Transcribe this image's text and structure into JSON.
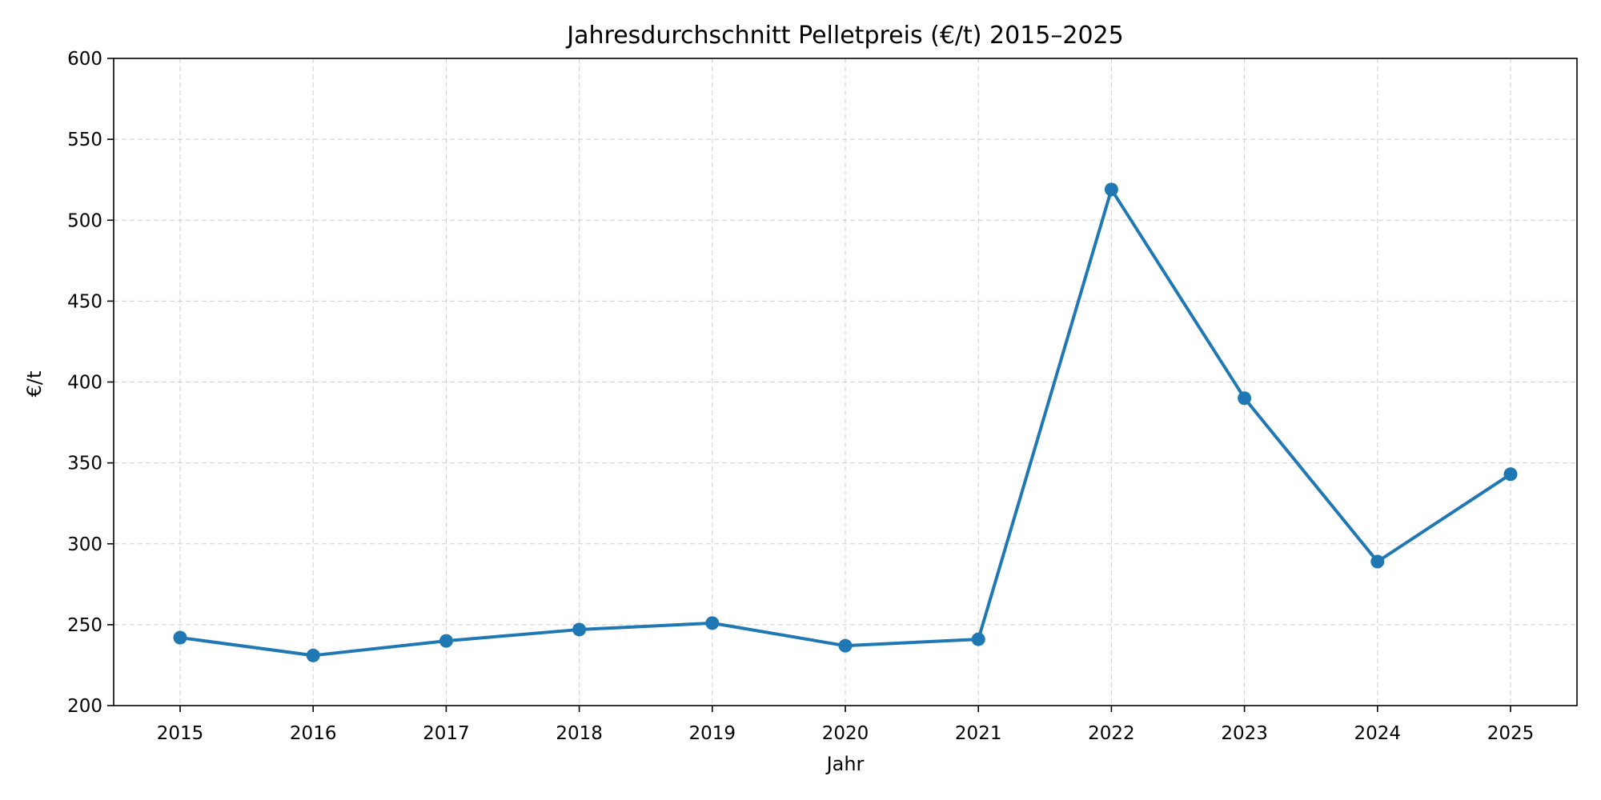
{
  "chart_data": {
    "type": "line",
    "title": "Jahresdurchschnitt Pelletpreis (€/t) 2015–2025",
    "xlabel": "Jahr",
    "ylabel": "€/t",
    "x": [
      "2015",
      "2016",
      "2017",
      "2018",
      "2019",
      "2020",
      "2021",
      "2022",
      "2023",
      "2024",
      "2025"
    ],
    "series": [
      {
        "values": [
          242,
          231,
          240,
          247,
          251,
          237,
          241,
          519,
          390,
          289,
          343
        ],
        "color": "#1f77b4"
      }
    ],
    "ylim": [
      200,
      600
    ],
    "yticks": [
      "200",
      "250",
      "300",
      "350",
      "400",
      "450",
      "500",
      "550",
      "600"
    ],
    "grid": true,
    "marker": "circle"
  }
}
